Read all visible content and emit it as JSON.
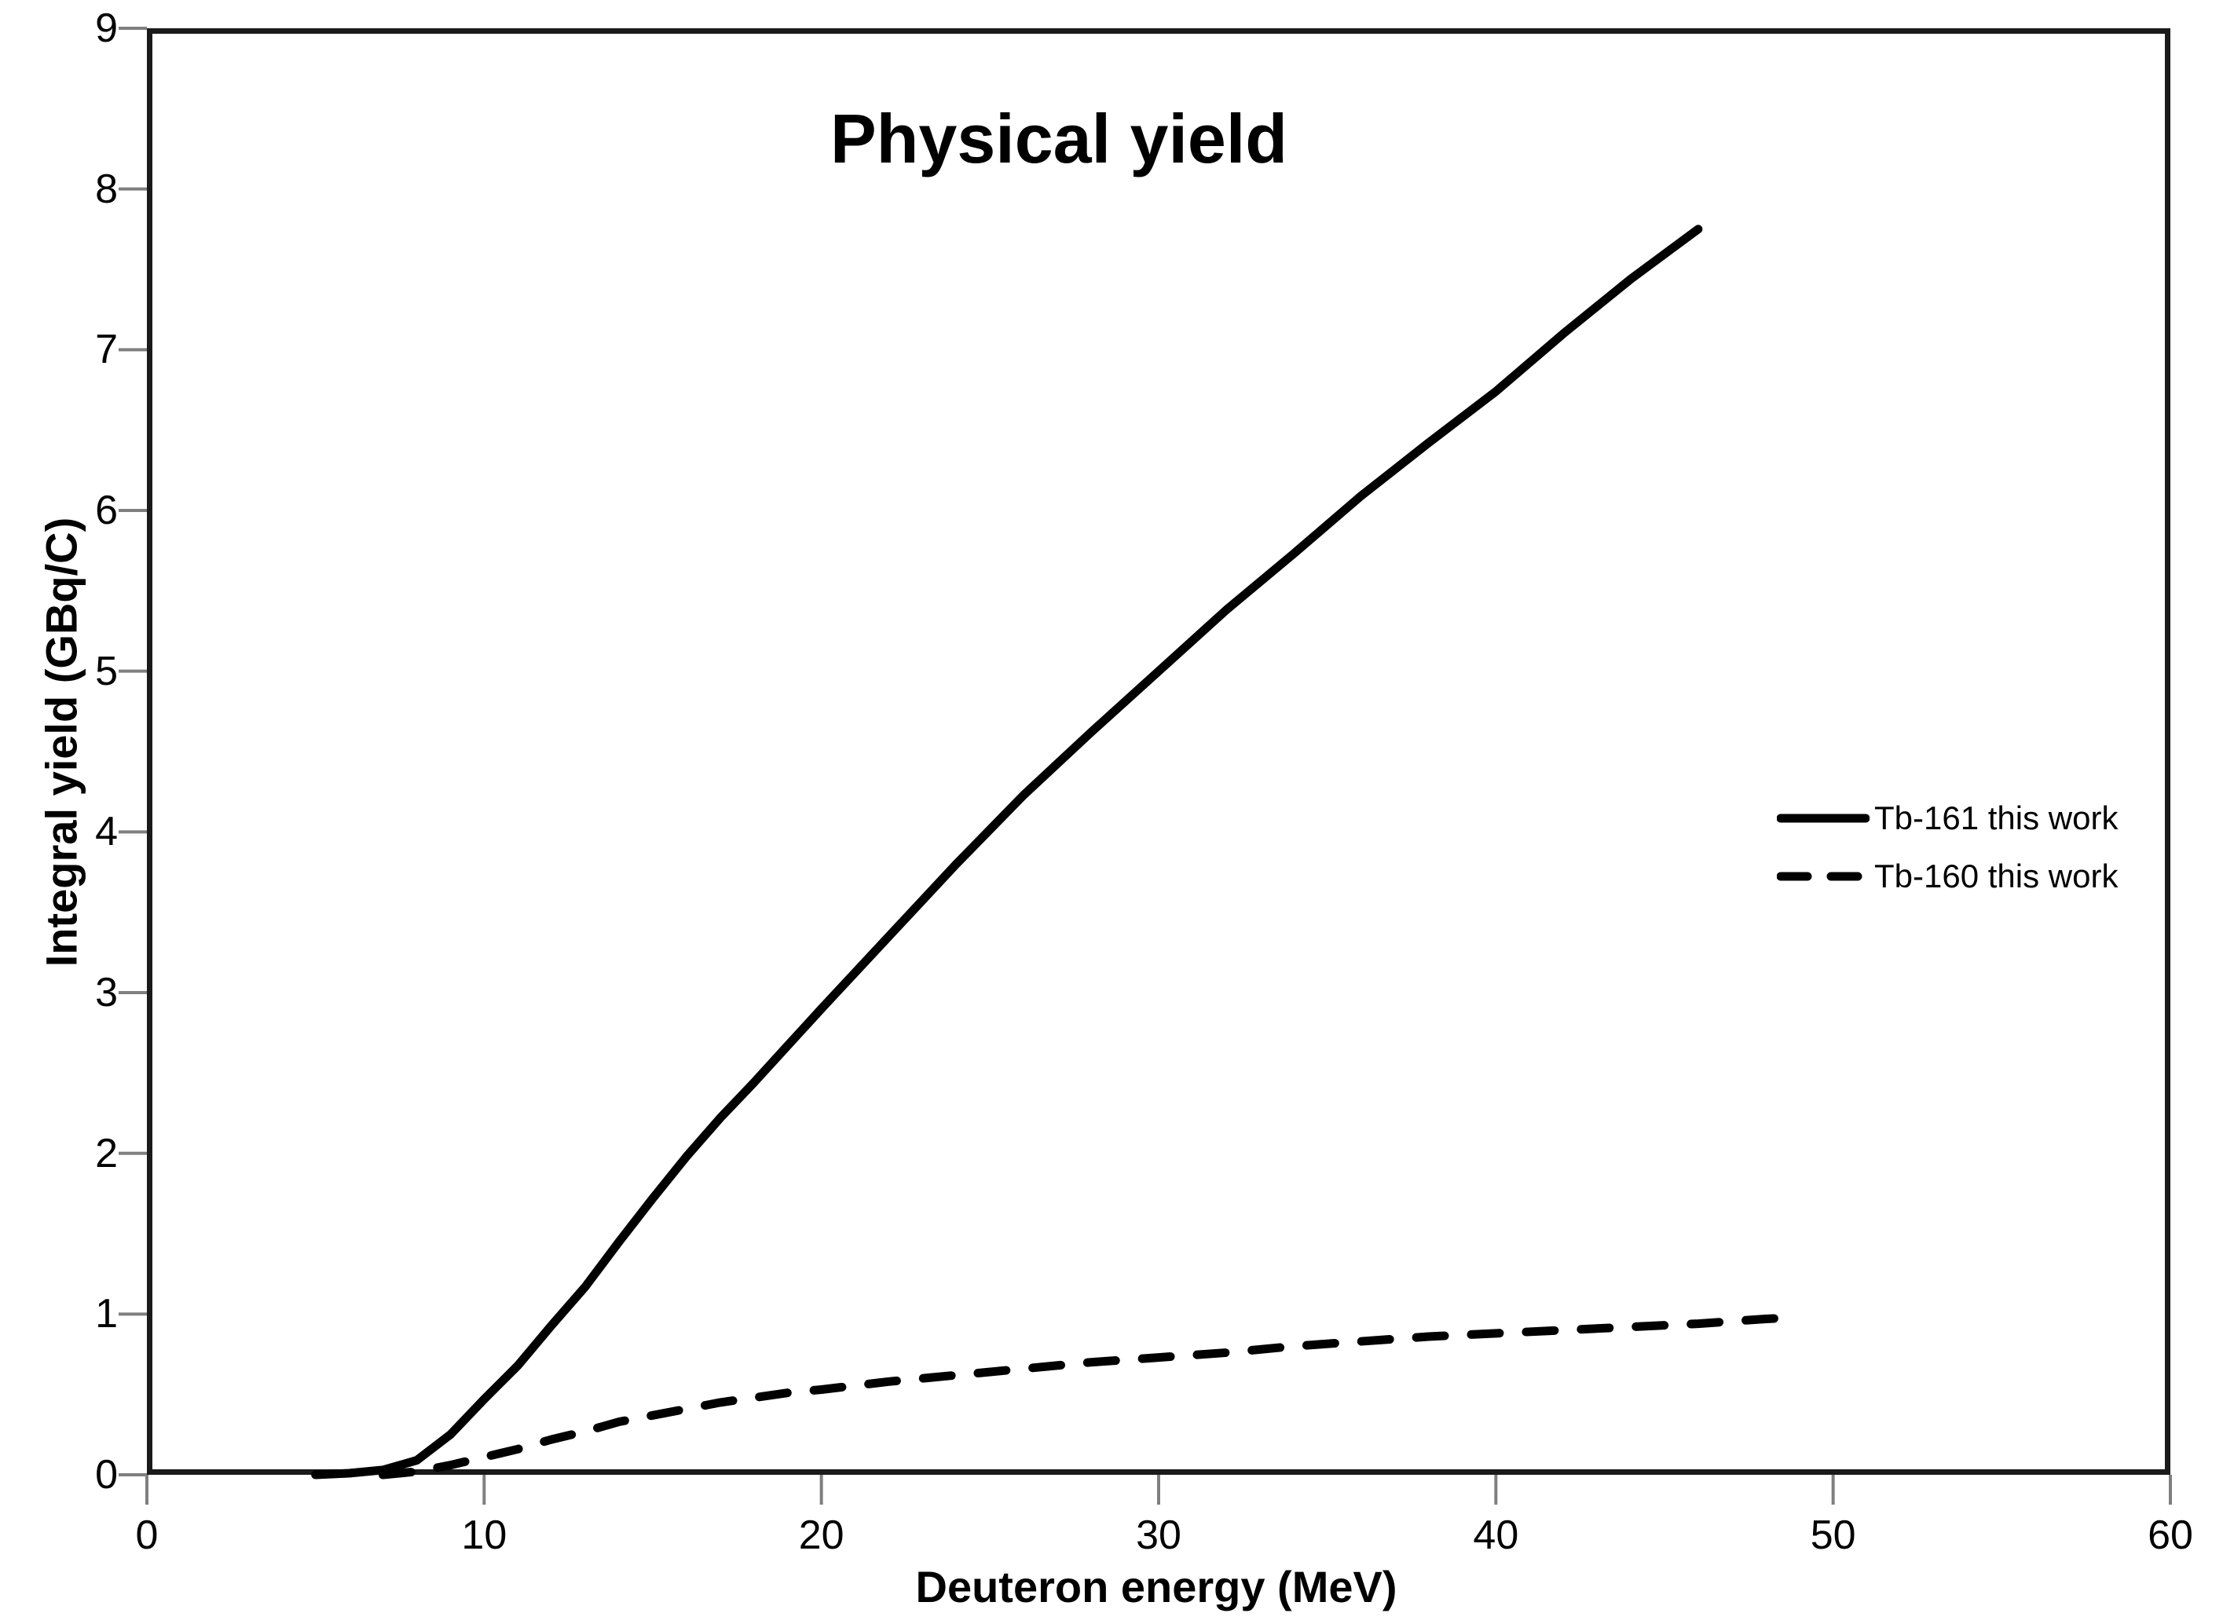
{
  "title": "Physical yield",
  "x_axis": {
    "label": "Deuteron energy (MeV)",
    "min": 0,
    "max": 60,
    "ticks": [
      0,
      10,
      20,
      30,
      40,
      50,
      60
    ]
  },
  "y_axis": {
    "label": "Integral yield (GBq/C)",
    "min": 0,
    "max": 9,
    "ticks": [
      0,
      1,
      2,
      3,
      4,
      5,
      6,
      7,
      8,
      9
    ]
  },
  "legend": {
    "items": [
      {
        "label": "Tb-161 this work",
        "style": "solid"
      },
      {
        "label": "Tb-160 this work",
        "style": "dashed"
      }
    ]
  },
  "colors": {
    "line": "#000000",
    "frame": "#1a1a1a",
    "tick": "#7f7f7f",
    "text": "#000000",
    "background": "#ffffff"
  },
  "chart_data": {
    "type": "line",
    "title": "Physical yield",
    "xlabel": "Deuteron energy (MeV)",
    "ylabel": "Integral yield (GBq/C)",
    "xlim": [
      0,
      60
    ],
    "ylim": [
      0,
      9
    ],
    "grid": false,
    "legend_position": "right-middle",
    "series": [
      {
        "name": "Tb-161 this work",
        "style": "solid",
        "points": [
          [
            5,
            0.0
          ],
          [
            6,
            0.01
          ],
          [
            7,
            0.03
          ],
          [
            8,
            0.09
          ],
          [
            9,
            0.25
          ],
          [
            10,
            0.47
          ],
          [
            11,
            0.68
          ],
          [
            12,
            0.93
          ],
          [
            13,
            1.17
          ],
          [
            14,
            1.45
          ],
          [
            15,
            1.72
          ],
          [
            16,
            1.98
          ],
          [
            17,
            2.22
          ],
          [
            18,
            2.44
          ],
          [
            19,
            2.67
          ],
          [
            20,
            2.9
          ],
          [
            22,
            3.35
          ],
          [
            24,
            3.8
          ],
          [
            26,
            4.23
          ],
          [
            28,
            4.62
          ],
          [
            30,
            5.0
          ],
          [
            32,
            5.38
          ],
          [
            34,
            5.73
          ],
          [
            36,
            6.09
          ],
          [
            38,
            6.42
          ],
          [
            40,
            6.74
          ],
          [
            42,
            7.1
          ],
          [
            44,
            7.44
          ],
          [
            46,
            7.75
          ]
        ]
      },
      {
        "name": "Tb-160 this work",
        "style": "dashed",
        "points": [
          [
            7,
            0.0
          ],
          [
            8,
            0.02
          ],
          [
            9,
            0.06
          ],
          [
            10,
            0.11
          ],
          [
            11,
            0.16
          ],
          [
            12,
            0.22
          ],
          [
            13,
            0.27
          ],
          [
            14,
            0.33
          ],
          [
            15,
            0.37
          ],
          [
            16,
            0.41
          ],
          [
            17,
            0.45
          ],
          [
            18,
            0.48
          ],
          [
            19,
            0.51
          ],
          [
            20,
            0.53
          ],
          [
            22,
            0.58
          ],
          [
            24,
            0.62
          ],
          [
            26,
            0.66
          ],
          [
            28,
            0.7
          ],
          [
            30,
            0.73
          ],
          [
            32,
            0.76
          ],
          [
            34,
            0.8
          ],
          [
            36,
            0.83
          ],
          [
            38,
            0.86
          ],
          [
            40,
            0.88
          ],
          [
            42,
            0.9
          ],
          [
            44,
            0.92
          ],
          [
            46,
            0.94
          ],
          [
            48,
            0.97
          ],
          [
            49,
            0.98
          ]
        ]
      }
    ]
  }
}
